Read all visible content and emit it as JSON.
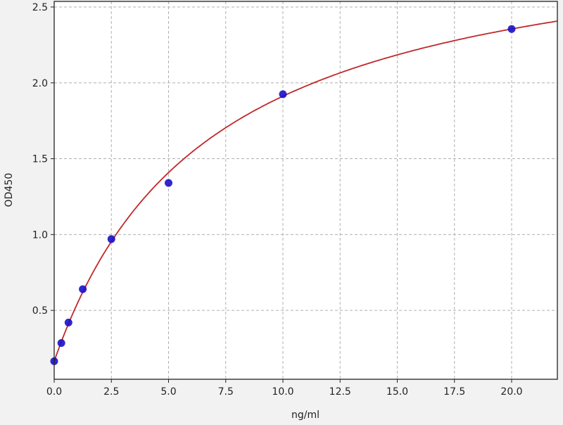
{
  "chart_data": {
    "type": "scatter",
    "title": "",
    "xlabel": "ng/ml",
    "ylabel": "OD450",
    "xlim": [
      0,
      22
    ],
    "ylim": [
      0.046,
      2.537
    ],
    "xticks": [
      0.0,
      2.5,
      5.0,
      7.5,
      10.0,
      12.5,
      15.0,
      17.5,
      20.0
    ],
    "xtick_labels": [
      "0.0",
      "2.5",
      "5.0",
      "7.5",
      "10.0",
      "12.5",
      "15.0",
      "17.5",
      "20.0"
    ],
    "yticks": [
      0.5,
      1.0,
      1.5,
      2.0,
      2.5
    ],
    "ytick_labels": [
      "0.5",
      "1.0",
      "1.5",
      "2.0",
      "2.5"
    ],
    "grid": true,
    "series": [
      {
        "kind": "points",
        "x": [
          0,
          0.3125,
          0.625,
          1.25,
          2.5,
          5,
          10,
          20
        ],
        "y": [
          0.165,
          0.285,
          0.42,
          0.64,
          0.97,
          1.34,
          1.925,
          2.355
        ],
        "color": "#1a0fc8"
      },
      {
        "kind": "fitted-curve",
        "color": "#c0282a"
      }
    ]
  }
}
